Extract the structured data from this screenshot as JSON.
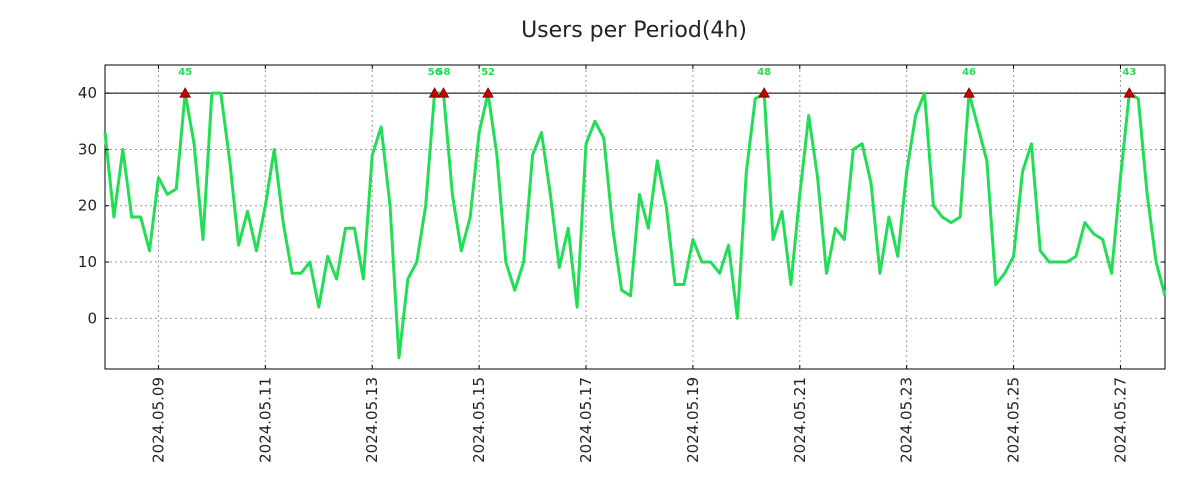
{
  "chart_data": {
    "type": "line",
    "title": "Users per Period(4h)",
    "xlabel": "",
    "ylabel": "",
    "ylim": [
      -9,
      45
    ],
    "grid": true,
    "y_ticks": [
      0,
      10,
      20,
      30,
      40
    ],
    "threshold": 40,
    "x_tick_labels": [
      "2024.05.09",
      "2024.05.11",
      "2024.05.13",
      "2024.05.15",
      "2024.05.17",
      "2024.05.19",
      "2024.05.21",
      "2024.05.23",
      "2024.05.25",
      "2024.05.27"
    ],
    "x_tick_index": [
      6,
      18,
      30,
      42,
      54,
      66,
      78,
      90,
      102,
      114
    ],
    "series": [
      {
        "name": "Users",
        "color": "#22dd55",
        "values": [
          33,
          18,
          30,
          18,
          18,
          12,
          25,
          22,
          23,
          40,
          31,
          14,
          40,
          40,
          28,
          13,
          19,
          12,
          20,
          30,
          17,
          8,
          8,
          10,
          2,
          11,
          7,
          16,
          16,
          7,
          29,
          34,
          20,
          -7,
          7,
          10,
          20,
          40,
          40,
          22,
          12,
          18,
          33,
          40,
          29,
          10,
          5,
          10,
          29,
          33,
          22,
          9,
          16,
          2,
          31,
          35,
          32,
          16,
          5,
          4,
          22,
          16,
          28,
          20,
          6,
          6,
          14,
          10,
          10,
          8,
          13,
          0,
          26,
          39,
          40,
          14,
          19,
          6,
          22,
          36,
          25,
          8,
          16,
          14,
          30,
          31,
          24,
          8,
          18,
          11,
          26,
          36,
          40,
          20,
          18,
          17,
          18,
          40,
          34,
          28,
          6,
          8,
          11,
          26,
          31,
          12,
          10,
          10,
          10,
          11,
          17,
          15,
          14,
          8,
          25,
          40,
          39,
          22,
          10,
          4
        ]
      }
    ],
    "peaks": [
      {
        "index": 9,
        "label": "45"
      },
      {
        "index": 37,
        "label": "56"
      },
      {
        "index": 38,
        "label": "58"
      },
      {
        "index": 43,
        "label": "52"
      },
      {
        "index": 74,
        "label": "48"
      },
      {
        "index": 97,
        "label": "46"
      },
      {
        "index": 115,
        "label": "43"
      }
    ],
    "peak_color": "#22dd55",
    "marker_color": "#cc0000"
  }
}
